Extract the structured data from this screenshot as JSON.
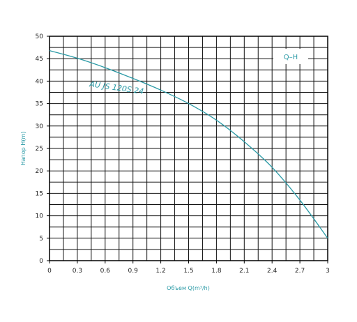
{
  "chart_data": {
    "type": "line",
    "title": "",
    "xlabel": "Объем Q(m³/h)",
    "ylabel": "Напор H(m)",
    "xlim": [
      0,
      3
    ],
    "ylim": [
      0,
      50
    ],
    "x_ticks": [
      "0",
      "0.3",
      "0.6",
      "0.9",
      "1.2",
      "1.5",
      "1.8",
      "2.1",
      "2.4",
      "2.7",
      "3"
    ],
    "y_ticks": [
      "0",
      "5",
      "10",
      "15",
      "20",
      "25",
      "30",
      "35",
      "40",
      "45",
      "50"
    ],
    "grid": true,
    "legend": {
      "text": "Q–H",
      "position": "top-right"
    },
    "series": [
      {
        "name": "AU JS 120S 24",
        "color": "#2a9aa6",
        "x": [
          0,
          0.3,
          0.6,
          0.9,
          1.2,
          1.5,
          1.8,
          2.1,
          2.4,
          2.7,
          3.0
        ],
        "y": [
          46.8,
          45.1,
          43.0,
          40.6,
          38.0,
          35.0,
          31.3,
          26.5,
          20.8,
          13.5,
          5.0
        ]
      }
    ]
  }
}
